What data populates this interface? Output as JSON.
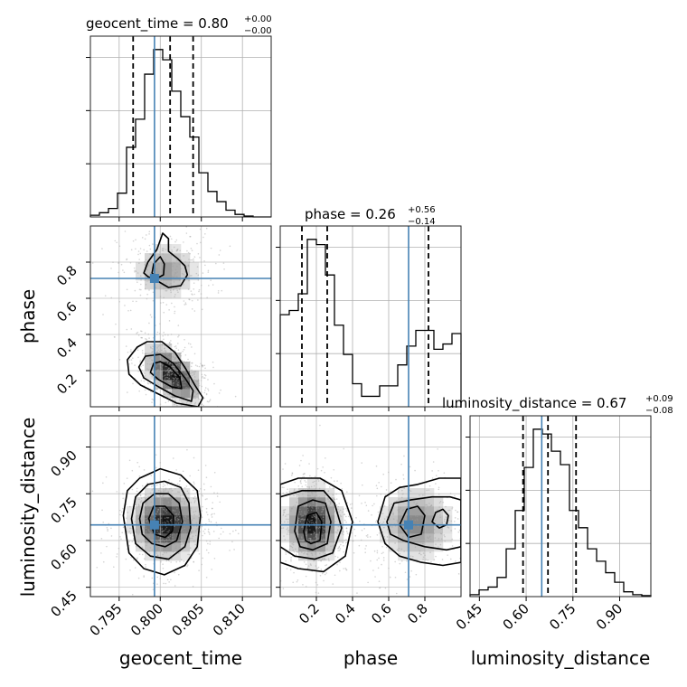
{
  "chart_data": {
    "type": "corner",
    "parameters": [
      "geocent_time",
      "phase",
      "luminosity_distance"
    ],
    "titles": [
      {
        "param": "geocent_time",
        "text": "geocent_time = 0.80",
        "plus": "+0.00",
        "minus": "−0.00"
      },
      {
        "param": "phase",
        "text": "phase = 0.26",
        "plus": "+0.56",
        "minus": "−0.14"
      },
      {
        "param": "luminosity_distance",
        "text": "luminosity_distance = 0.67",
        "plus": "+0.09",
        "minus": "−0.08"
      }
    ],
    "axis_labels": {
      "bottom": [
        "geocent_time",
        "phase",
        "luminosity_distance"
      ],
      "left": [
        "phase",
        "luminosity_distance"
      ]
    },
    "ranges": {
      "geocent_time": [
        0.7915,
        0.8135
      ],
      "phase": [
        0.0,
        1.0
      ],
      "luminosity_distance": [
        0.42,
        1.0
      ]
    },
    "ticks": {
      "geocent_time": [
        0.795,
        0.8,
        0.805,
        0.81
      ],
      "geocent_time_labels": [
        "0.795",
        "0.800",
        "0.805",
        "0.810"
      ],
      "phase": [
        0.2,
        0.4,
        0.6,
        0.8
      ],
      "phase_labels": [
        "0.2",
        "0.4",
        "0.6",
        "0.8"
      ],
      "luminosity_distance": [
        0.45,
        0.6,
        0.75,
        0.9
      ],
      "luminosity_distance_labels": [
        "0.45",
        "0.60",
        "0.75",
        "0.90"
      ]
    },
    "truths": {
      "geocent_time": 0.7993,
      "phase": 0.71,
      "luminosity_distance": 0.65
    },
    "quantiles": {
      "geocent_time": [
        0.7967,
        0.8012,
        0.804
      ],
      "phase": [
        0.12,
        0.26,
        0.82
      ],
      "luminosity_distance": [
        0.59,
        0.67,
        0.76
      ]
    },
    "histograms": {
      "geocent_time": {
        "edges": [
          0.7915,
          0.7926,
          0.7937,
          0.7948,
          0.7959,
          0.797,
          0.7981,
          0.7992,
          0.8003,
          0.8014,
          0.8025,
          0.8036,
          0.8047,
          0.8058,
          0.8069,
          0.808,
          0.8091,
          0.8102,
          0.8113,
          0.8124,
          0.8135
        ],
        "counts": [
          2,
          5,
          10,
          28,
          82,
          115,
          168,
          197,
          185,
          148,
          118,
          94,
          52,
          30,
          18,
          8,
          3,
          1,
          0,
          0
        ]
      },
      "phase": {
        "edges": [
          0.0,
          0.05,
          0.1,
          0.15,
          0.2,
          0.25,
          0.3,
          0.35,
          0.4,
          0.45,
          0.5,
          0.55,
          0.6,
          0.65,
          0.7,
          0.75,
          0.8,
          0.85,
          0.9,
          0.95,
          1.0
        ],
        "counts": [
          88,
          92,
          108,
          160,
          155,
          126,
          78,
          50,
          22,
          10,
          10,
          20,
          20,
          40,
          58,
          73,
          73,
          55,
          60,
          70
        ]
      },
      "luminosity_distance": {
        "edges": [
          0.42,
          0.449,
          0.478,
          0.507,
          0.536,
          0.565,
          0.594,
          0.623,
          0.652,
          0.681,
          0.71,
          0.739,
          0.768,
          0.797,
          0.826,
          0.855,
          0.884,
          0.913,
          0.942,
          0.971,
          1.0
        ],
        "counts": [
          2,
          7,
          10,
          20,
          50,
          90,
          135,
          175,
          170,
          152,
          138,
          90,
          72,
          50,
          37,
          25,
          15,
          5,
          2,
          1
        ]
      }
    },
    "contour_panels": [
      {
        "x": "geocent_time",
        "y": "phase",
        "modes": [
          {
            "cx": 0.8015,
            "cy": 0.18,
            "sx": 0.0018,
            "sy": 0.085,
            "rho": -0.55,
            "amp": 1.0
          },
          {
            "cx": 0.8007,
            "cy": 0.75,
            "sx": 0.0022,
            "sy": 0.085,
            "rho": 0.0,
            "amp": 0.45
          }
        ],
        "contours": [
          [
            [
              0.7972,
              0.33
            ],
            [
              0.796,
              0.26
            ],
            [
              0.7962,
              0.18
            ],
            [
              0.7976,
              0.12
            ],
            [
              0.7998,
              0.07
            ],
            [
              0.802,
              0.02
            ],
            [
              0.8046,
              0.0
            ],
            [
              0.8052,
              0.05
            ],
            [
              0.8042,
              0.12
            ],
            [
              0.8031,
              0.21
            ],
            [
              0.8018,
              0.3
            ],
            [
              0.8002,
              0.36
            ],
            [
              0.7984,
              0.36
            ]
          ],
          [
            [
              0.7982,
              0.28
            ],
            [
              0.7974,
              0.22
            ],
            [
              0.798,
              0.16
            ],
            [
              0.7998,
              0.11
            ],
            [
              0.8018,
              0.06
            ],
            [
              0.8038,
              0.03
            ],
            [
              0.804,
              0.09
            ],
            [
              0.803,
              0.16
            ],
            [
              0.8016,
              0.24
            ],
            [
              0.8,
              0.29
            ]
          ],
          [
            [
              0.7992,
              0.24
            ],
            [
              0.7988,
              0.19
            ],
            [
              0.7998,
              0.15
            ],
            [
              0.8014,
              0.11
            ],
            [
              0.8026,
              0.1
            ],
            [
              0.8024,
              0.16
            ],
            [
              0.8012,
              0.22
            ],
            [
              0.8,
              0.25
            ]
          ],
          [
            [
              0.798,
              0.74
            ],
            [
              0.7985,
              0.8
            ],
            [
              0.7996,
              0.87
            ],
            [
              0.8003,
              0.96
            ],
            [
              0.801,
              0.93
            ],
            [
              0.801,
              0.86
            ],
            [
              0.8021,
              0.82
            ],
            [
              0.803,
              0.78
            ],
            [
              0.8033,
              0.73
            ],
            [
              0.8025,
              0.67
            ],
            [
              0.801,
              0.66
            ],
            [
              0.7995,
              0.7
            ],
            [
              0.7985,
              0.72
            ]
          ],
          [
            [
              0.799,
              0.74
            ],
            [
              0.7992,
              0.79
            ],
            [
              0.8,
              0.83
            ],
            [
              0.8005,
              0.79
            ],
            [
              0.8004,
              0.73
            ],
            [
              0.7996,
              0.71
            ]
          ]
        ]
      },
      {
        "x": "geocent_time",
        "y": "luminosity_distance",
        "modes": [
          {
            "cx": 0.8007,
            "cy": 0.655,
            "sx": 0.0022,
            "sy": 0.06,
            "rho": 0.0,
            "amp": 1.0
          }
        ],
        "contours": [
          [
            [
              0.7955,
              0.68
            ],
            [
              0.796,
              0.76
            ],
            [
              0.7975,
              0.8
            ],
            [
              0.8,
              0.83
            ],
            [
              0.8025,
              0.81
            ],
            [
              0.8045,
              0.76
            ],
            [
              0.8049,
              0.68
            ],
            [
              0.8045,
              0.58
            ],
            [
              0.803,
              0.52
            ],
            [
              0.8005,
              0.49
            ],
            [
              0.798,
              0.51
            ],
            [
              0.7962,
              0.56
            ]
          ],
          [
            [
              0.7965,
              0.67
            ],
            [
              0.797,
              0.74
            ],
            [
              0.7985,
              0.78
            ],
            [
              0.8005,
              0.79
            ],
            [
              0.8025,
              0.77
            ],
            [
              0.8035,
              0.72
            ],
            [
              0.8037,
              0.64
            ],
            [
              0.803,
              0.58
            ],
            [
              0.801,
              0.54
            ],
            [
              0.7988,
              0.55
            ],
            [
              0.797,
              0.59
            ]
          ],
          [
            [
              0.7975,
              0.67
            ],
            [
              0.7979,
              0.72
            ],
            [
              0.7993,
              0.75
            ],
            [
              0.801,
              0.75
            ],
            [
              0.8023,
              0.72
            ],
            [
              0.8027,
              0.66
            ],
            [
              0.802,
              0.6
            ],
            [
              0.8006,
              0.58
            ],
            [
              0.799,
              0.59
            ],
            [
              0.7978,
              0.62
            ]
          ],
          [
            [
              0.7986,
              0.67
            ],
            [
              0.7992,
              0.71
            ],
            [
              0.8006,
              0.71
            ],
            [
              0.8016,
              0.68
            ],
            [
              0.8015,
              0.63
            ],
            [
              0.8006,
              0.61
            ],
            [
              0.7993,
              0.62
            ]
          ]
        ]
      },
      {
        "x": "phase",
        "y": "luminosity_distance",
        "modes": [
          {
            "cx": 0.18,
            "cy": 0.655,
            "sx": 0.08,
            "sy": 0.065,
            "rho": 0.0,
            "amp": 1.0
          },
          {
            "cx": 0.75,
            "cy": 0.655,
            "sx": 0.11,
            "sy": 0.065,
            "rho": 0.0,
            "amp": 0.55
          }
        ],
        "contours": [
          [
            [
              0.0,
              0.53
            ],
            [
              0.0,
              0.78
            ],
            [
              0.1,
              0.8
            ],
            [
              0.22,
              0.8
            ],
            [
              0.34,
              0.76
            ],
            [
              0.4,
              0.66
            ],
            [
              0.36,
              0.55
            ],
            [
              0.24,
              0.5
            ],
            [
              0.1,
              0.51
            ]
          ],
          [
            [
              0.0,
              0.58
            ],
            [
              0.0,
              0.74
            ],
            [
              0.12,
              0.76
            ],
            [
              0.24,
              0.76
            ],
            [
              0.3,
              0.72
            ],
            [
              0.34,
              0.64
            ],
            [
              0.29,
              0.56
            ],
            [
              0.19,
              0.54
            ],
            [
              0.08,
              0.55
            ]
          ],
          [
            [
              0.08,
              0.63
            ],
            [
              0.1,
              0.71
            ],
            [
              0.18,
              0.73
            ],
            [
              0.25,
              0.72
            ],
            [
              0.28,
              0.66
            ],
            [
              0.26,
              0.59
            ],
            [
              0.18,
              0.57
            ],
            [
              0.11,
              0.58
            ]
          ],
          [
            [
              0.13,
              0.63
            ],
            [
              0.15,
              0.68
            ],
            [
              0.2,
              0.69
            ],
            [
              0.23,
              0.66
            ],
            [
              0.22,
              0.6
            ],
            [
              0.17,
              0.59
            ],
            [
              0.14,
              0.6
            ]
          ],
          [
            [
              0.54,
              0.66
            ],
            [
              0.58,
              0.74
            ],
            [
              0.66,
              0.77
            ],
            [
              0.76,
              0.78
            ],
            [
              0.88,
              0.8
            ],
            [
              1.0,
              0.8
            ],
            [
              1.0,
              0.53
            ],
            [
              0.9,
              0.52
            ],
            [
              0.78,
              0.53
            ],
            [
              0.66,
              0.55
            ],
            [
              0.58,
              0.59
            ]
          ],
          [
            [
              0.59,
              0.66
            ],
            [
              0.63,
              0.72
            ],
            [
              0.72,
              0.73
            ],
            [
              0.84,
              0.74
            ],
            [
              0.94,
              0.74
            ],
            [
              1.0,
              0.73
            ],
            [
              1.0,
              0.58
            ],
            [
              0.92,
              0.57
            ],
            [
              0.8,
              0.58
            ],
            [
              0.68,
              0.6
            ],
            [
              0.61,
              0.62
            ]
          ],
          [
            [
              0.66,
              0.65
            ],
            [
              0.7,
              0.7
            ],
            [
              0.76,
              0.71
            ],
            [
              0.8,
              0.68
            ],
            [
              0.78,
              0.62
            ],
            [
              0.71,
              0.61
            ]
          ],
          [
            [
              0.84,
              0.66
            ],
            [
              0.86,
              0.69
            ],
            [
              0.9,
              0.7
            ],
            [
              0.93,
              0.68
            ],
            [
              0.92,
              0.65
            ],
            [
              0.88,
              0.64
            ]
          ]
        ]
      }
    ],
    "colors": {
      "truth": "#4682b4",
      "line": "#000000",
      "grid": "#b0b0b0",
      "scatter": "#a0a0a0"
    }
  }
}
